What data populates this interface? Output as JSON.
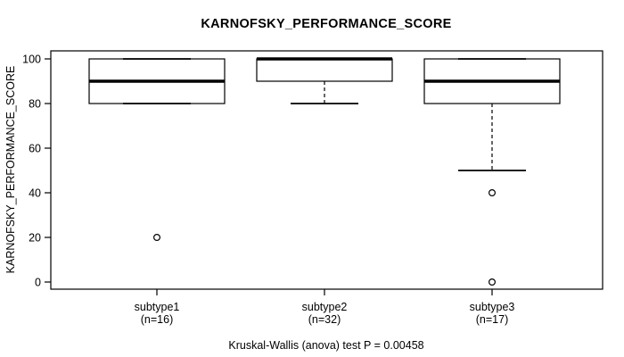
{
  "figure": {
    "background": "#ffffff",
    "line_color": "#000000",
    "box_fill": "#ffffff"
  },
  "chart_data": {
    "type": "boxplot",
    "title": "KARNOFSKY_PERFORMANCE_SCORE",
    "xlabel": "",
    "ylabel": "KARNOFSKY_PERFORMANCE_SCORE",
    "ylim": [
      0,
      100
    ],
    "yticks": [
      0,
      20,
      40,
      60,
      80,
      100
    ],
    "grid": false,
    "frame": "full-box",
    "categories": [
      "subtype1",
      "subtype2",
      "subtype3"
    ],
    "category_sublabels": [
      "(n=16)",
      "(n=32)",
      "(n=17)"
    ],
    "series": [
      {
        "name": "subtype1",
        "n": 16,
        "whisker_low": 80,
        "q1": 80,
        "median": 90,
        "q3": 100,
        "whisker_high": 100,
        "outliers": [
          20
        ]
      },
      {
        "name": "subtype2",
        "n": 32,
        "whisker_low": 80,
        "q1": 90,
        "median": 100,
        "q3": 100,
        "whisker_high": 100,
        "outliers": []
      },
      {
        "name": "subtype3",
        "n": 17,
        "whisker_low": 50,
        "q1": 80,
        "median": 90,
        "q3": 100,
        "whisker_high": 100,
        "outliers": [
          40,
          0
        ]
      }
    ],
    "annotation": "Kruskal-Wallis (anova) test P = 0.00458"
  }
}
